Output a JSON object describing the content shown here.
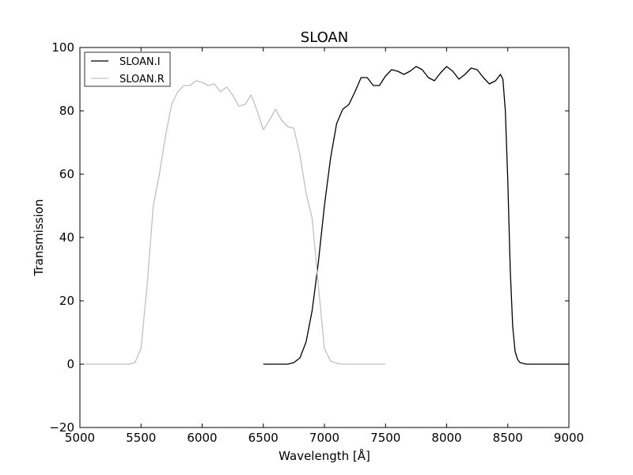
{
  "chart_data": {
    "type": "line",
    "title": "SLOAN",
    "xlabel": "Wavelength [Å]",
    "ylabel": "Transmission",
    "xlim": [
      5000,
      9000
    ],
    "ylim": [
      -20,
      100
    ],
    "xticks": [
      5000,
      5500,
      6000,
      6500,
      7000,
      7500,
      8000,
      8500,
      9000
    ],
    "yticks": [
      -20,
      0,
      20,
      40,
      60,
      80,
      100
    ],
    "xtick_labels": [
      "5000",
      "5500",
      "6000",
      "6500",
      "7000",
      "7500",
      "8000",
      "8500",
      "9000"
    ],
    "ytick_labels": [
      "−20",
      "0",
      "20",
      "40",
      "60",
      "80",
      "100"
    ],
    "grid": false,
    "legend_position": "top-left",
    "series": [
      {
        "name": "SLOAN.I",
        "color": "#000000",
        "points": [
          [
            6500,
            0
          ],
          [
            6700,
            0
          ],
          [
            6750,
            0.5
          ],
          [
            6800,
            2
          ],
          [
            6850,
            7
          ],
          [
            6900,
            17
          ],
          [
            6950,
            32
          ],
          [
            7000,
            50
          ],
          [
            7050,
            65
          ],
          [
            7100,
            76
          ],
          [
            7150,
            80.5
          ],
          [
            7200,
            82
          ],
          [
            7250,
            86
          ],
          [
            7300,
            90.5
          ],
          [
            7350,
            90.5
          ],
          [
            7400,
            88
          ],
          [
            7450,
            88
          ],
          [
            7500,
            91
          ],
          [
            7550,
            93
          ],
          [
            7600,
            92.5
          ],
          [
            7650,
            91.5
          ],
          [
            7700,
            92.5
          ],
          [
            7750,
            94
          ],
          [
            7800,
            93
          ],
          [
            7850,
            90.5
          ],
          [
            7900,
            89.5
          ],
          [
            7950,
            92
          ],
          [
            8000,
            94
          ],
          [
            8050,
            92.5
          ],
          [
            8100,
            90
          ],
          [
            8150,
            91.5
          ],
          [
            8200,
            93.5
          ],
          [
            8250,
            93
          ],
          [
            8300,
            90.5
          ],
          [
            8350,
            88.5
          ],
          [
            8400,
            89.5
          ],
          [
            8440,
            91.5
          ],
          [
            8460,
            90
          ],
          [
            8480,
            80
          ],
          [
            8500,
            58
          ],
          [
            8520,
            30
          ],
          [
            8540,
            12
          ],
          [
            8560,
            4
          ],
          [
            8580,
            1.5
          ],
          [
            8600,
            0.5
          ],
          [
            8650,
            0
          ],
          [
            8800,
            0
          ],
          [
            9000,
            0
          ]
        ]
      },
      {
        "name": "SLOAN.R",
        "color": "#c0c0c0",
        "points": [
          [
            5000,
            0
          ],
          [
            5400,
            0
          ],
          [
            5450,
            0.5
          ],
          [
            5500,
            5
          ],
          [
            5550,
            25
          ],
          [
            5600,
            50
          ],
          [
            5650,
            60
          ],
          [
            5700,
            72
          ],
          [
            5750,
            82
          ],
          [
            5800,
            86
          ],
          [
            5850,
            88
          ],
          [
            5900,
            88
          ],
          [
            5950,
            89.5
          ],
          [
            6000,
            89
          ],
          [
            6050,
            88
          ],
          [
            6100,
            88.5
          ],
          [
            6150,
            86
          ],
          [
            6200,
            87.5
          ],
          [
            6250,
            85
          ],
          [
            6300,
            81.5
          ],
          [
            6350,
            82
          ],
          [
            6400,
            85
          ],
          [
            6450,
            80
          ],
          [
            6500,
            74
          ],
          [
            6550,
            77
          ],
          [
            6600,
            80.5
          ],
          [
            6650,
            77
          ],
          [
            6700,
            75
          ],
          [
            6750,
            74.5
          ],
          [
            6800,
            66
          ],
          [
            6850,
            54
          ],
          [
            6900,
            46
          ],
          [
            6950,
            25
          ],
          [
            7000,
            5
          ],
          [
            7050,
            1
          ],
          [
            7100,
            0.3
          ],
          [
            7150,
            0
          ],
          [
            7500,
            0
          ]
        ]
      }
    ]
  }
}
